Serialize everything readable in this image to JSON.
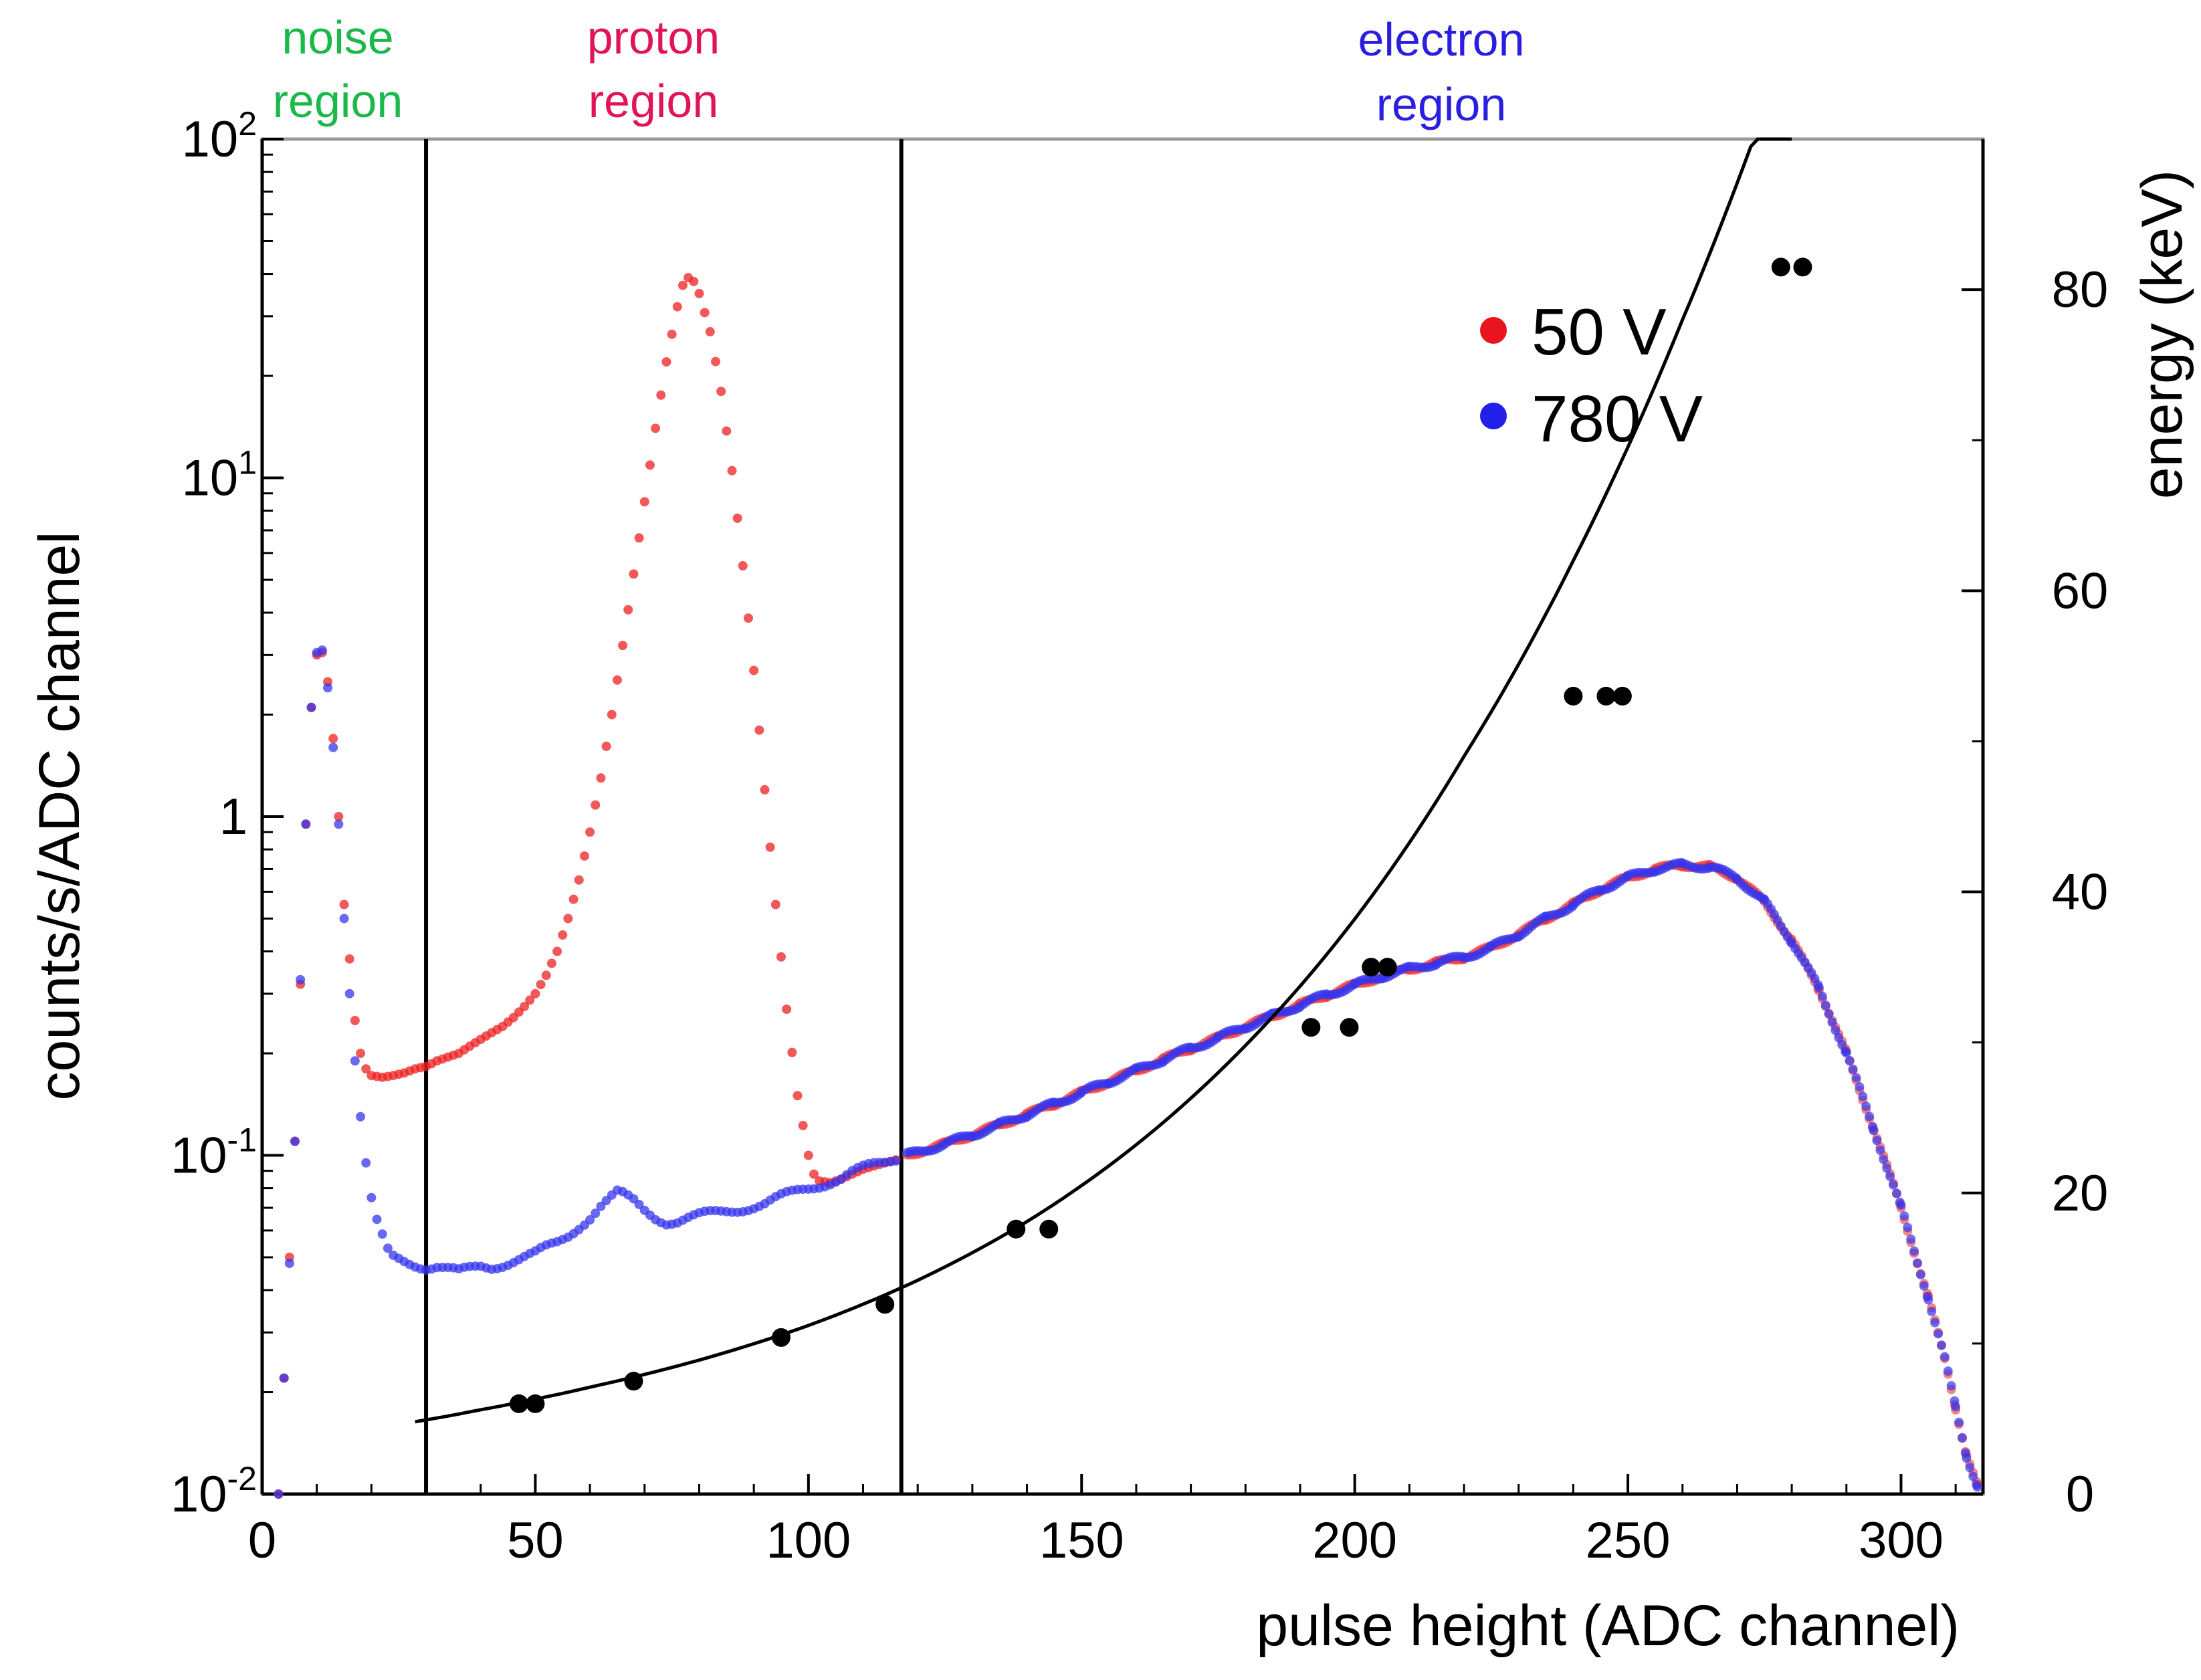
{
  "chart_data": {
    "type": "scatter",
    "title": "",
    "xlabel": "pulse height (ADC channel)",
    "ylabel": "counts/s/ADC channel",
    "y2label": "energy (keV)",
    "x_ticks": [
      "0",
      "50",
      "100",
      "150",
      "200",
      "250",
      "300"
    ],
    "y_ticks": [
      {
        "base": "10",
        "exp": "-2"
      },
      {
        "base": "10",
        "exp": "-1"
      },
      {
        "base": "1",
        "exp": ""
      },
      {
        "base": "10",
        "exp": "1"
      },
      {
        "base": "10",
        "exp": "2"
      }
    ],
    "y2_ticks": [
      "0",
      "20",
      "40",
      "60",
      "80"
    ],
    "xlim": [
      0,
      315
    ],
    "ylim": [
      0.01,
      100
    ],
    "yscale": "log",
    "y2lim": [
      0,
      90
    ],
    "grid": false,
    "legend": {
      "position": "top-right",
      "entries": [
        {
          "label": "50 V",
          "color": "#e8141e"
        },
        {
          "label": "780 V",
          "color": "#2020e8"
        }
      ]
    },
    "regions": [
      {
        "label_line1": "noise",
        "label_line2": "region",
        "color": "#1bb84a"
      },
      {
        "label_line1": "proton",
        "label_line2": "region",
        "color": "#e0145a"
      },
      {
        "label_line1": "electron",
        "label_line2": "region",
        "color": "#2a1ee0"
      }
    ],
    "region_boundaries_x": [
      30,
      117
    ],
    "series_50V_peak": [
      [
        3,
        0.01
      ],
      [
        4,
        0.022
      ],
      [
        5,
        0.05
      ],
      [
        6,
        0.11
      ],
      [
        7,
        0.32
      ],
      [
        8,
        0.95
      ],
      [
        9,
        2.1
      ],
      [
        10,
        3.0
      ],
      [
        11,
        3.05
      ],
      [
        12,
        2.5
      ],
      [
        13,
        1.7
      ],
      [
        14,
        1.0
      ],
      [
        15,
        0.55
      ],
      [
        16,
        0.38
      ],
      [
        17,
        0.25
      ],
      [
        18,
        0.2
      ],
      [
        19,
        0.18
      ],
      [
        20,
        0.172
      ],
      [
        22,
        0.17
      ],
      [
        24,
        0.172
      ],
      [
        26,
        0.175
      ],
      [
        28,
        0.18
      ],
      [
        30,
        0.183
      ],
      [
        32,
        0.19
      ],
      [
        34,
        0.195
      ],
      [
        36,
        0.2
      ],
      [
        38,
        0.21
      ],
      [
        40,
        0.22
      ],
      [
        42,
        0.23
      ],
      [
        44,
        0.24
      ],
      [
        46,
        0.255
      ],
      [
        48,
        0.275
      ],
      [
        50,
        0.3
      ],
      [
        52,
        0.34
      ],
      [
        54,
        0.4
      ],
      [
        56,
        0.5
      ],
      [
        58,
        0.65
      ],
      [
        60,
        0.9
      ],
      [
        62,
        1.3
      ],
      [
        64,
        2.0
      ],
      [
        66,
        3.2
      ],
      [
        68,
        5.2
      ],
      [
        70,
        8.5
      ],
      [
        72,
        14
      ],
      [
        74,
        22
      ],
      [
        76,
        32
      ],
      [
        77,
        37
      ],
      [
        78,
        39
      ],
      [
        79,
        38
      ],
      [
        80,
        35
      ],
      [
        82,
        27
      ],
      [
        84,
        18
      ],
      [
        86,
        10.5
      ],
      [
        88,
        5.5
      ],
      [
        90,
        2.7
      ],
      [
        92,
        1.2
      ],
      [
        94,
        0.55
      ],
      [
        96,
        0.27
      ],
      [
        98,
        0.15
      ],
      [
        100,
        0.1
      ],
      [
        101,
        0.088
      ],
      [
        102,
        0.084
      ],
      [
        104,
        0.083
      ],
      [
        106,
        0.085
      ],
      [
        108,
        0.088
      ],
      [
        110,
        0.091
      ],
      [
        112,
        0.093
      ],
      [
        114,
        0.095
      ],
      [
        116,
        0.097
      ]
    ],
    "series_780V_low": [
      [
        3,
        0.01
      ],
      [
        4,
        0.022
      ],
      [
        5,
        0.048
      ],
      [
        6,
        0.11
      ],
      [
        7,
        0.33
      ],
      [
        8,
        0.95
      ],
      [
        9,
        2.1
      ],
      [
        10,
        3.05
      ],
      [
        11,
        3.1
      ],
      [
        12,
        2.4
      ],
      [
        13,
        1.6
      ],
      [
        14,
        0.95
      ],
      [
        15,
        0.5
      ],
      [
        16,
        0.3
      ],
      [
        17,
        0.19
      ],
      [
        18,
        0.13
      ],
      [
        19,
        0.095
      ],
      [
        20,
        0.075
      ],
      [
        21,
        0.063
      ],
      [
        22,
        0.057
      ],
      [
        23,
        0.052
      ],
      [
        24,
        0.05
      ],
      [
        26,
        0.049
      ],
      [
        28,
        0.048
      ],
      [
        30,
        0.047
      ],
      [
        32,
        0.047
      ],
      [
        34,
        0.046
      ],
      [
        36,
        0.045
      ],
      [
        38,
        0.046
      ],
      [
        40,
        0.047
      ],
      [
        42,
        0.047
      ],
      [
        44,
        0.048
      ],
      [
        46,
        0.049
      ],
      [
        48,
        0.05
      ],
      [
        50,
        0.051
      ],
      [
        52,
        0.053
      ],
      [
        54,
        0.055
      ],
      [
        56,
        0.058
      ],
      [
        58,
        0.062
      ],
      [
        60,
        0.066
      ],
      [
        62,
        0.071
      ],
      [
        64,
        0.075
      ],
      [
        65,
        0.077
      ],
      [
        66,
        0.076
      ],
      [
        68,
        0.073
      ],
      [
        70,
        0.069
      ],
      [
        72,
        0.066
      ],
      [
        74,
        0.064
      ],
      [
        76,
        0.064
      ],
      [
        78,
        0.065
      ],
      [
        80,
        0.066
      ],
      [
        82,
        0.067
      ],
      [
        84,
        0.068
      ],
      [
        86,
        0.069
      ],
      [
        88,
        0.07
      ],
      [
        90,
        0.071
      ],
      [
        92,
        0.072
      ],
      [
        94,
        0.074
      ],
      [
        96,
        0.076
      ],
      [
        98,
        0.078
      ],
      [
        100,
        0.08
      ],
      [
        102,
        0.082
      ],
      [
        104,
        0.084
      ],
      [
        106,
        0.086
      ],
      [
        108,
        0.089
      ],
      [
        110,
        0.091
      ],
      [
        112,
        0.093
      ],
      [
        114,
        0.095
      ],
      [
        116,
        0.098
      ]
    ],
    "series_common_high": [
      [
        118,
        0.1
      ],
      [
        125,
        0.108
      ],
      [
        130,
        0.115
      ],
      [
        135,
        0.123
      ],
      [
        140,
        0.132
      ],
      [
        145,
        0.142
      ],
      [
        150,
        0.153
      ],
      [
        155,
        0.165
      ],
      [
        160,
        0.178
      ],
      [
        165,
        0.192
      ],
      [
        170,
        0.207
      ],
      [
        175,
        0.222
      ],
      [
        180,
        0.24
      ],
      [
        185,
        0.258
      ],
      [
        190,
        0.278
      ],
      [
        195,
        0.298
      ],
      [
        200,
        0.318
      ],
      [
        205,
        0.338
      ],
      [
        210,
        0.355
      ],
      [
        215,
        0.37
      ],
      [
        220,
        0.385
      ],
      [
        225,
        0.41
      ],
      [
        230,
        0.45
      ],
      [
        235,
        0.5
      ],
      [
        240,
        0.55
      ],
      [
        245,
        0.61
      ],
      [
        250,
        0.66
      ],
      [
        255,
        0.7
      ],
      [
        260,
        0.72
      ],
      [
        265,
        0.71
      ],
      [
        270,
        0.66
      ],
      [
        275,
        0.56
      ],
      [
        280,
        0.43
      ],
      [
        285,
        0.31
      ],
      [
        290,
        0.2
      ],
      [
        295,
        0.12
      ],
      [
        300,
        0.07
      ],
      [
        305,
        0.038
      ],
      [
        308,
        0.025
      ],
      [
        310,
        0.018
      ],
      [
        312,
        0.013
      ],
      [
        314,
        0.0105
      ]
    ],
    "calibration_points_keV": [
      [
        47,
        6.0
      ],
      [
        50,
        6.0
      ],
      [
        68,
        7.5
      ],
      [
        95,
        10.4
      ],
      [
        114,
        12.6
      ],
      [
        138,
        17.6
      ],
      [
        144,
        17.6
      ],
      [
        192,
        31.0
      ],
      [
        199,
        31.0
      ],
      [
        203,
        35.0
      ],
      [
        206,
        35.0
      ],
      [
        240,
        53.0
      ],
      [
        246,
        53.0
      ],
      [
        249,
        53.0
      ],
      [
        278,
        81.5
      ],
      [
        282,
        81.5
      ]
    ],
    "calibration_fit_keV": [
      [
        28,
        4.8
      ],
      [
        40,
        5.6
      ],
      [
        60,
        7.1
      ],
      [
        80,
        8.9
      ],
      [
        100,
        11.2
      ],
      [
        120,
        14.2
      ],
      [
        140,
        18.1
      ],
      [
        160,
        23.2
      ],
      [
        180,
        29.8
      ],
      [
        200,
        38.2
      ],
      [
        220,
        49.0
      ],
      [
        240,
        62.0
      ],
      [
        260,
        78.0
      ],
      [
        275,
        92.0
      ],
      [
        280,
        98.0
      ]
    ]
  }
}
